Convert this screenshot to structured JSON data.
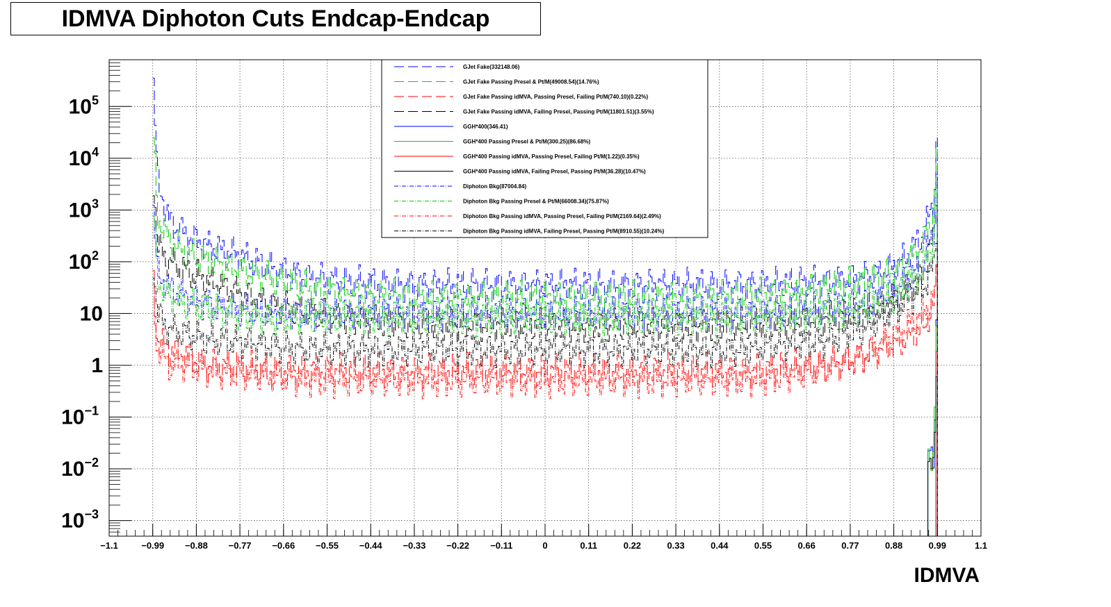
{
  "chart_data": {
    "type": "line",
    "title": "IDMVA Diphoton Cuts Endcap-Endcap",
    "xlabel": "IDMVA",
    "ylabel": "",
    "xlim": [
      -1.1,
      1.1
    ],
    "ylim": [
      0.0005,
      800000
    ],
    "yscale": "log",
    "grid": true,
    "legend_position": "top-center",
    "x_ticks": [
      "−1.1",
      "−0.99",
      "−0.88",
      "−0.77",
      "−0.66",
      "−0.55",
      "−0.44",
      "−0.33",
      "−0.22",
      "−0.11",
      "0",
      "0.11",
      "0.22",
      "0.33",
      "0.44",
      "0.55",
      "0.66",
      "0.77",
      "0.88",
      "0.99",
      "1.1"
    ],
    "x_tick_values": [
      -1.1,
      -0.99,
      -0.88,
      -0.77,
      -0.66,
      -0.55,
      -0.44,
      -0.33,
      -0.22,
      -0.11,
      0,
      0.11,
      0.22,
      0.33,
      0.44,
      0.55,
      0.66,
      0.77,
      0.88,
      0.99,
      1.1
    ],
    "y_ticks": [
      {
        "value": 100000,
        "base": "10",
        "exp": "5"
      },
      {
        "value": 10000,
        "base": "10",
        "exp": "4"
      },
      {
        "value": 1000,
        "base": "10",
        "exp": "3"
      },
      {
        "value": 100,
        "base": "10",
        "exp": "2"
      },
      {
        "value": 10,
        "base": "10",
        "exp": ""
      },
      {
        "value": 1,
        "base": "1",
        "exp": ""
      },
      {
        "value": 0.1,
        "base": "10",
        "exp": "−1"
      },
      {
        "value": 0.01,
        "base": "10",
        "exp": "−2"
      },
      {
        "value": 0.001,
        "base": "10",
        "exp": "−3"
      }
    ],
    "x": [
      -0.99,
      -0.98,
      -0.95,
      -0.9,
      -0.85,
      -0.8,
      -0.7,
      -0.6,
      -0.5,
      -0.4,
      -0.3,
      -0.2,
      -0.1,
      0,
      0.1,
      0.2,
      0.3,
      0.4,
      0.5,
      0.6,
      0.7,
      0.8,
      0.85,
      0.9,
      0.95,
      0.98,
      0.99
    ],
    "series": [
      {
        "name": "GJet Fake(332148.06)",
        "color": "#0000ff",
        "dash": "long-dash",
        "values": [
          280000,
          4000,
          600,
          300,
          200,
          150,
          80,
          50,
          40,
          38,
          35,
          35,
          35,
          35,
          35,
          35,
          35,
          35,
          35,
          38,
          40,
          50,
          60,
          100,
          300,
          1500,
          120000
        ]
      },
      {
        "name": "GJet Fake Passing Presel & Pt/M(49008.54)(14.76%)",
        "color": "#00cc00",
        "dash": "long-dash",
        "values": [
          25000,
          800,
          250,
          140,
          100,
          80,
          50,
          30,
          25,
          22,
          20,
          20,
          20,
          20,
          20,
          20,
          20,
          20,
          22,
          25,
          30,
          40,
          50,
          80,
          200,
          1000,
          100000
        ]
      },
      {
        "name": "GJet Fake Passing idMVA, Passing Presel, Failing Pt/M(740.10)(0.22%)",
        "color": "#ff0000",
        "dash": "long-dash",
        "values": [
          40,
          3,
          2,
          1.5,
          1,
          1,
          0.8,
          0.8,
          0.8,
          0.8,
          0.8,
          0.8,
          0.8,
          0.8,
          0.8,
          0.8,
          0.8,
          0.8,
          0.8,
          0.9,
          1,
          1.5,
          2,
          3,
          5,
          15,
          100
        ]
      },
      {
        "name": "GJet Fake Passing idMVA, Failing Presel, Passing Pt/M(11801.51)(3.55%)",
        "color": "#000000",
        "dash": "long-dash",
        "values": [
          4000,
          200,
          100,
          60,
          40,
          30,
          15,
          10,
          8,
          7,
          6,
          6,
          6,
          6,
          6,
          6,
          6,
          6,
          6,
          7,
          8,
          10,
          15,
          25,
          60,
          300,
          10000
        ]
      },
      {
        "name": "GGH*400(346.41)",
        "color": "#0000ff",
        "dash": "solid",
        "values": [
          0,
          0,
          0,
          0,
          0,
          0,
          0,
          0,
          0,
          0,
          0,
          0,
          0,
          0,
          0,
          0,
          0,
          0,
          0,
          0,
          0,
          0,
          0,
          0,
          0,
          0.02,
          300
        ]
      },
      {
        "name": "GGH*400 Passing Presel & Pt/M(300.25)(86.68%)",
        "color": "#00cc00",
        "dash": "solid",
        "values": [
          0,
          0,
          0,
          0,
          0,
          0,
          0,
          0,
          0,
          0,
          0,
          0,
          0,
          0,
          0,
          0,
          0,
          0,
          0,
          0,
          0,
          0,
          0,
          0,
          0,
          0.02,
          260
        ]
      },
      {
        "name": "GGH*400 Passing idMVA, Passing Presel, Failing Pt/M(1.22)(0.35%)",
        "color": "#ff0000",
        "dash": "solid",
        "values": [
          0,
          0,
          0,
          0,
          0,
          0,
          0,
          0,
          0,
          0,
          0,
          0,
          0,
          0,
          0,
          0,
          0,
          0,
          0,
          0,
          0,
          0,
          0,
          0,
          0,
          0,
          1
        ]
      },
      {
        "name": "GGH*400 Passing idMVA, Failing Presel, Passing Pt/M(36.28)(10.47%)",
        "color": "#000000",
        "dash": "solid",
        "values": [
          0,
          0,
          0,
          0,
          0,
          0,
          0,
          0,
          0,
          0,
          0,
          0,
          0,
          0,
          0,
          0,
          0,
          0,
          0,
          0,
          0,
          0,
          0,
          0,
          0,
          0.01,
          30
        ]
      },
      {
        "name": "Diphoton Bkg(87004.84)",
        "color": "#0000ff",
        "dash": "dash-dot",
        "values": [
          1000,
          60,
          30,
          20,
          15,
          12,
          10,
          10,
          10,
          10,
          10,
          10,
          10,
          10,
          10,
          10,
          10,
          10,
          10,
          11,
          12,
          15,
          20,
          35,
          80,
          400,
          20000
        ]
      },
      {
        "name": "Diphoton Bkg Passing Presel & Pt/M(66008.34)(75.87%)",
        "color": "#00cc00",
        "dash": "dash-dot",
        "values": [
          800,
          45,
          22,
          15,
          12,
          10,
          8,
          8,
          8,
          8,
          8,
          8,
          8,
          8,
          8,
          8,
          8,
          8,
          8,
          9,
          10,
          12,
          15,
          28,
          60,
          300,
          15000
        ]
      },
      {
        "name": "Diphoton Bkg Passing idMVA, Passing Presel, Failing Pt/M(2169.64)(2.49%)",
        "color": "#ff0000",
        "dash": "dash-dot",
        "values": [
          20,
          2,
          1,
          1,
          0.8,
          0.7,
          0.6,
          0.5,
          0.5,
          0.5,
          0.5,
          0.5,
          0.5,
          0.5,
          0.5,
          0.5,
          0.5,
          0.5,
          0.5,
          0.6,
          0.8,
          1.5,
          3,
          5,
          10,
          20,
          80
        ]
      },
      {
        "name": "Diphoton Bkg Passing idMVA, Failing Presel, Passing Pt/M(8910.55)(10.24%)",
        "color": "#000000",
        "dash": "dash-dot",
        "values": [
          100,
          10,
          5,
          4,
          3,
          3,
          2.5,
          2,
          2,
          2,
          2,
          2,
          2,
          2,
          2,
          2,
          2,
          2,
          2,
          2.5,
          3,
          5,
          8,
          15,
          30,
          80,
          1500
        ]
      }
    ]
  }
}
